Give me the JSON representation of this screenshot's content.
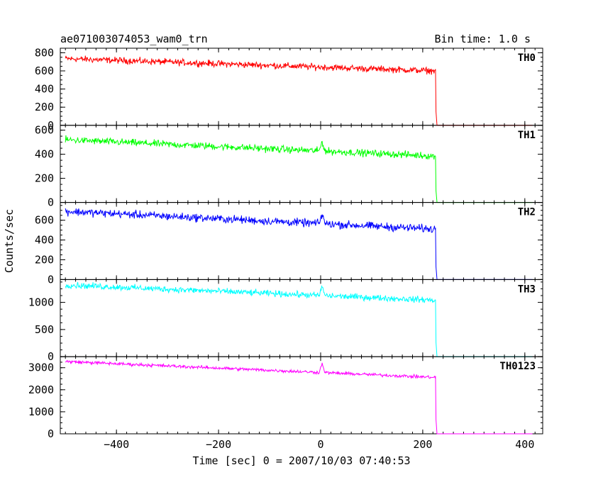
{
  "chart_data": {
    "type": "line",
    "title": "ae071003074053_wam0_trn",
    "bin_label": "Bin time: 1.0 s",
    "xlabel": "Time [sec] 0 = 2007/10/03 07:40:53",
    "ylabel": "Counts/sec",
    "xlim": [
      -510,
      435
    ],
    "xticks": [
      -400,
      -200,
      0,
      200,
      400
    ],
    "grid": false,
    "panels": [
      {
        "name": "TH0",
        "color": "#ff0000",
        "ylim": [
          0,
          850
        ],
        "yticks": [
          0,
          200,
          400,
          600,
          800
        ],
        "trend": {
          "start": 735,
          "end": 600,
          "noise": 22,
          "spike": 0
        },
        "x": [
          -500,
          -400,
          -300,
          -200,
          -100,
          0,
          100,
          220,
          225,
          226,
          228,
          415
        ],
        "y": [
          735,
          720,
          700,
          685,
          665,
          640,
          620,
          600,
          600,
          150,
          0,
          0
        ]
      },
      {
        "name": "TH1",
        "color": "#00ff00",
        "ylim": [
          0,
          640
        ],
        "yticks": [
          0,
          200,
          400,
          600
        ],
        "trend": {
          "start": 520,
          "end": 385,
          "noise": 18,
          "spike": 80
        },
        "x": [
          -500,
          -400,
          -300,
          -200,
          -100,
          0,
          100,
          220,
          225,
          226,
          228,
          415
        ],
        "y": [
          520,
          510,
          490,
          470,
          450,
          435,
          410,
          385,
          385,
          100,
          0,
          0
        ]
      },
      {
        "name": "TH2",
        "color": "#0000ff",
        "ylim": [
          0,
          780
        ],
        "yticks": [
          0,
          200,
          400,
          600
        ],
        "trend": {
          "start": 690,
          "end": 510,
          "noise": 25,
          "spike": 100
        },
        "x": [
          -500,
          -400,
          -300,
          -200,
          -100,
          0,
          100,
          220,
          225,
          226,
          228,
          415
        ],
        "y": [
          690,
          670,
          650,
          630,
          600,
          585,
          550,
          510,
          510,
          120,
          0,
          0
        ]
      },
      {
        "name": "TH3",
        "color": "#00ffff",
        "ylim": [
          0,
          1420
        ],
        "yticks": [
          0,
          500,
          1000
        ],
        "trend": {
          "start": 1320,
          "end": 1040,
          "noise": 35,
          "spike": 160
        },
        "x": [
          -500,
          -400,
          -300,
          -200,
          -100,
          0,
          100,
          220,
          225,
          226,
          228,
          415
        ],
        "y": [
          1320,
          1290,
          1260,
          1230,
          1200,
          1170,
          1110,
          1040,
          1040,
          250,
          0,
          0
        ]
      },
      {
        "name": "TH0123",
        "color": "#ff00ff",
        "ylim": [
          0,
          3500
        ],
        "yticks": [
          0,
          1000,
          2000,
          3000
        ],
        "trend": {
          "start": 3280,
          "end": 2560,
          "noise": 45,
          "spike": 400
        },
        "x": [
          -500,
          -400,
          -300,
          -200,
          -100,
          0,
          100,
          220,
          225,
          226,
          228,
          415
        ],
        "y": [
          3280,
          3200,
          3100,
          3000,
          2880,
          2780,
          2660,
          2560,
          2560,
          600,
          0,
          0
        ]
      }
    ]
  }
}
